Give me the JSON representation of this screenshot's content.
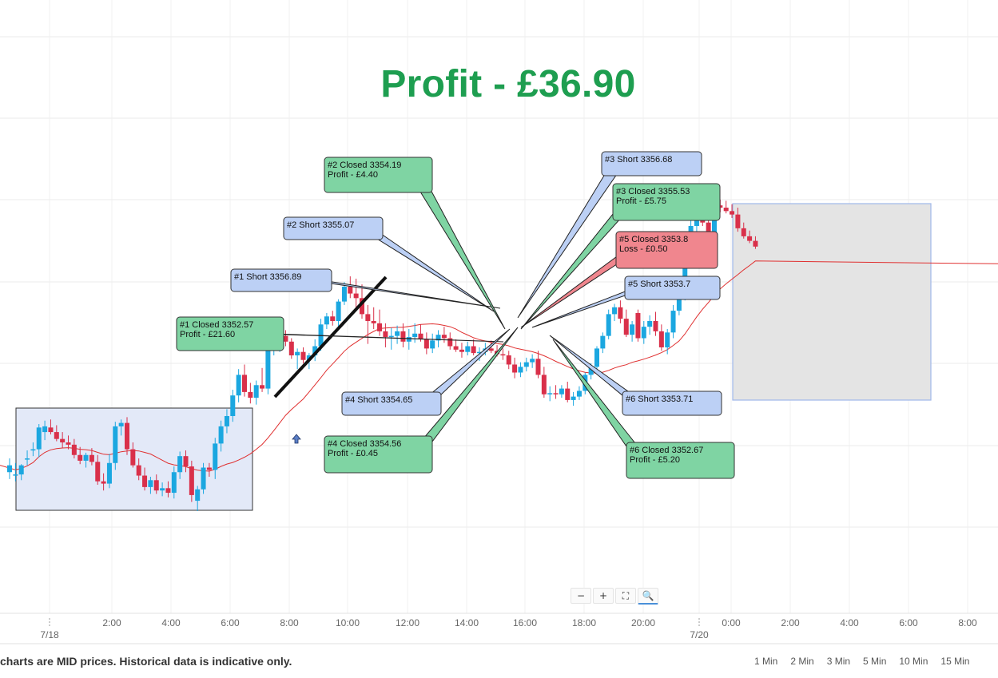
{
  "headline": {
    "text": "Profit - £36.90",
    "color": "#1e9e50"
  },
  "footer": {
    "note": "charts are MID prices. Historical data is indicative only.",
    "timeframes": [
      "1 Min",
      "2 Min",
      "3 Min",
      "5 Min",
      "10 Min",
      "15 Min"
    ]
  },
  "zoom_controls": [
    "minus-icon",
    "plus-icon",
    "fit-screen-icon",
    "magnifier-icon"
  ],
  "colors": {
    "up_candle": "#1ba7e0",
    "down_candle": "#d9304a",
    "moving_average": "#e03030",
    "profit_label_bg": "#7fd4a3",
    "loss_label_bg": "#f0868e",
    "short_label_bg": "#bcd0f5",
    "range_box_left": "#e3e9f8",
    "range_box_right": "#e4e4e4"
  },
  "chart_data": {
    "type": "candlestick",
    "title": "",
    "x_tick_labels": [
      "7/18",
      "2:00",
      "4:00",
      "6:00",
      "8:00",
      "10:00",
      "12:00",
      "14:00",
      "16:00",
      "18:00",
      "20:00",
      "7/20",
      "0:00",
      "2:00",
      "4:00",
      "6:00",
      "8:00"
    ],
    "y_range_approx": [
      3342,
      3368
    ],
    "ohlc": [
      [
        3344.4,
        3345.6,
        3343.8,
        3345.0
      ],
      [
        3344.2,
        3345.2,
        3343.6,
        3344.2
      ],
      [
        3344.2,
        3345.1,
        3343.7,
        3345.0
      ],
      [
        3345.6,
        3346.3,
        3345.0,
        3345.6
      ],
      [
        3346.4,
        3347.0,
        3345.8,
        3346.4
      ],
      [
        3346.4,
        3348.6,
        3345.7,
        3348.3
      ],
      [
        3347.9,
        3348.9,
        3347.2,
        3348.4
      ],
      [
        3348.3,
        3349.0,
        3347.7,
        3347.9
      ],
      [
        3347.9,
        3348.5,
        3347.1,
        3347.3
      ],
      [
        3347.3,
        3347.9,
        3346.5,
        3347.0
      ],
      [
        3347.0,
        3347.6,
        3346.4,
        3346.8
      ],
      [
        3346.8,
        3347.3,
        3345.6,
        3345.9
      ],
      [
        3345.9,
        3346.6,
        3345.1,
        3345.4
      ],
      [
        3345.4,
        3346.1,
        3344.8,
        3345.9
      ],
      [
        3345.9,
        3346.5,
        3345.0,
        3345.3
      ],
      [
        3345.3,
        3345.9,
        3343.3,
        3343.6
      ],
      [
        3343.6,
        3344.3,
        3342.8,
        3343.4
      ],
      [
        3343.4,
        3346.0,
        3343.0,
        3345.2
      ],
      [
        3345.2,
        3348.8,
        3344.6,
        3348.4
      ],
      [
        3348.4,
        3349.0,
        3347.6,
        3348.7
      ],
      [
        3348.7,
        3349.2,
        3345.9,
        3346.4
      ],
      [
        3346.4,
        3347.0,
        3344.8,
        3345.0
      ],
      [
        3345.0,
        3345.6,
        3343.7,
        3344.1
      ],
      [
        3344.1,
        3344.8,
        3342.8,
        3343.1
      ],
      [
        3343.1,
        3344.0,
        3342.5,
        3343.7
      ],
      [
        3343.7,
        3344.2,
        3342.5,
        3342.8
      ],
      [
        3342.8,
        3343.5,
        3342.3,
        3343.0
      ],
      [
        3343.0,
        3343.6,
        3342.2,
        3342.6
      ],
      [
        3342.6,
        3344.9,
        3342.1,
        3344.4
      ],
      [
        3344.4,
        3346.2,
        3343.8,
        3345.8
      ],
      [
        3345.8,
        3346.3,
        3344.4,
        3344.9
      ],
      [
        3344.9,
        3345.4,
        3341.8,
        3342.4
      ],
      [
        3341.9,
        3343.2,
        3341.0,
        3342.9
      ],
      [
        3342.9,
        3345.2,
        3342.5,
        3344.8
      ],
      [
        3344.8,
        3345.2,
        3344.0,
        3344.6
      ],
      [
        3344.6,
        3347.4,
        3343.8,
        3346.9
      ],
      [
        3346.9,
        3348.9,
        3346.2,
        3348.4
      ],
      [
        3348.4,
        3349.9,
        3347.8,
        3349.3
      ],
      [
        3349.3,
        3351.6,
        3348.8,
        3351.1
      ],
      [
        3351.1,
        3353.4,
        3350.5,
        3352.9
      ],
      [
        3352.9,
        3353.8,
        3351.0,
        3351.4
      ],
      [
        3351.4,
        3352.2,
        3350.4,
        3350.9
      ],
      [
        3350.9,
        3352.4,
        3350.3,
        3352.0
      ],
      [
        3352.0,
        3353.5,
        3351.4,
        3351.7
      ],
      [
        3351.7,
        3355.6,
        3351.2,
        3355.1
      ],
      [
        3355.1,
        3356.8,
        3354.6,
        3355.6
      ],
      [
        3355.6,
        3357.4,
        3354.9,
        3356.3
      ],
      [
        3356.3,
        3356.8,
        3355.4,
        3355.8
      ],
      [
        3355.8,
        3356.1,
        3354.3,
        3354.6
      ],
      [
        3354.6,
        3355.2,
        3353.4,
        3354.9
      ],
      [
        3354.9,
        3355.3,
        3353.9,
        3354.2
      ],
      [
        3354.2,
        3354.8,
        3353.4,
        3354.6
      ],
      [
        3354.6,
        3356.0,
        3354.1,
        3355.4
      ],
      [
        3355.4,
        3357.8,
        3355.0,
        3357.3
      ],
      [
        3357.3,
        3358.3,
        3356.9,
        3358.0
      ],
      [
        3358.0,
        3358.5,
        3357.2,
        3357.6
      ],
      [
        3357.6,
        3359.5,
        3356.8,
        3359.3
      ],
      [
        3359.3,
        3361.0,
        3359.0,
        3360.6
      ],
      [
        3360.6,
        3361.5,
        3359.6,
        3360.0
      ],
      [
        3360.0,
        3361.3,
        3358.8,
        3359.6
      ],
      [
        3359.6,
        3360.8,
        3357.8,
        3358.2
      ],
      [
        3358.2,
        3359.0,
        3355.6,
        3357.6
      ],
      [
        3357.6,
        3358.8,
        3356.9,
        3357.4
      ],
      [
        3357.4,
        3358.6,
        3356.3,
        3356.7
      ],
      [
        3356.7,
        3357.4,
        3355.3,
        3356.2
      ],
      [
        3356.2,
        3357.0,
        3355.1,
        3356.3
      ],
      [
        3356.3,
        3357.2,
        3355.6,
        3356.7
      ],
      [
        3356.7,
        3357.4,
        3355.3,
        3355.8
      ],
      [
        3355.8,
        3356.9,
        3355.1,
        3356.2
      ],
      [
        3356.2,
        3357.4,
        3355.7,
        3356.5
      ],
      [
        3356.5,
        3357.3,
        3355.8,
        3356.0
      ],
      [
        3356.0,
        3356.6,
        3354.7,
        3355.2
      ],
      [
        3355.2,
        3356.5,
        3354.8,
        3355.9
      ],
      [
        3355.9,
        3356.8,
        3355.3,
        3356.4
      ],
      [
        3356.4,
        3357.1,
        3355.7,
        3356.1
      ],
      [
        3356.1,
        3356.6,
        3355.1,
        3355.4
      ],
      [
        3355.4,
        3356.0,
        3354.9,
        3355.1
      ],
      [
        3355.1,
        3355.7,
        3354.4,
        3354.9
      ],
      [
        3354.9,
        3355.8,
        3354.6,
        3355.4
      ],
      [
        3355.4,
        3356.0,
        3354.6,
        3354.8
      ],
      [
        3354.8,
        3355.3,
        3354.1,
        3354.9
      ],
      [
        3354.9,
        3355.7,
        3354.6,
        3355.2
      ],
      [
        3355.2,
        3355.9,
        3354.8,
        3355.0
      ],
      [
        3355.0,
        3355.5,
        3354.5,
        3354.7
      ],
      [
        3354.7,
        3355.2,
        3354.2,
        3354.6
      ],
      [
        3354.6,
        3355.0,
        3353.4,
        3353.8
      ],
      [
        3353.8,
        3354.4,
        3352.6,
        3353.1
      ],
      [
        3353.1,
        3354.0,
        3352.7,
        3353.6
      ],
      [
        3353.6,
        3354.4,
        3353.2,
        3354.0
      ],
      [
        3354.0,
        3354.7,
        3353.5,
        3354.3
      ],
      [
        3354.3,
        3355.0,
        3352.6,
        3352.9
      ],
      [
        3352.9,
        3353.6,
        3350.9,
        3351.2
      ],
      [
        3351.2,
        3351.9,
        3350.6,
        3351.3
      ],
      [
        3351.3,
        3352.0,
        3350.8,
        3351.2
      ],
      [
        3351.2,
        3352.0,
        3350.9,
        3351.7
      ],
      [
        3351.7,
        3352.3,
        3350.5,
        3350.7
      ],
      [
        3350.7,
        3351.4,
        3350.2,
        3351.0
      ],
      [
        3351.0,
        3351.9,
        3350.7,
        3351.5
      ],
      [
        3351.5,
        3353.1,
        3351.2,
        3352.9
      ],
      [
        3352.9,
        3353.9,
        3352.5,
        3353.6
      ],
      [
        3353.6,
        3355.4,
        3353.1,
        3355.2
      ],
      [
        3355.2,
        3356.6,
        3354.8,
        3356.3
      ],
      [
        3356.3,
        3358.6,
        3356.0,
        3358.2
      ],
      [
        3358.2,
        3359.1,
        3357.6,
        3358.8
      ],
      [
        3358.8,
        3359.4,
        3357.4,
        3357.8
      ],
      [
        3357.8,
        3358.6,
        3356.2,
        3356.4
      ],
      [
        3356.4,
        3357.6,
        3355.8,
        3357.3
      ],
      [
        3358.3,
        3358.6,
        3355.8,
        3356.1
      ],
      [
        3356.1,
        3357.6,
        3355.6,
        3357.1
      ],
      [
        3357.1,
        3358.1,
        3356.4,
        3357.6
      ],
      [
        3357.6,
        3358.4,
        3356.3,
        3356.7
      ],
      [
        3356.7,
        3357.3,
        3355.0,
        3355.3
      ],
      [
        3355.3,
        3356.9,
        3354.7,
        3356.6
      ],
      [
        3356.6,
        3359.0,
        3356.1,
        3358.5
      ],
      [
        3358.5,
        3360.1,
        3358.1,
        3359.7
      ],
      [
        3359.7,
        3363.4,
        3359.4,
        3362.9
      ],
      [
        3362.9,
        3366.5,
        3362.4,
        3365.9
      ],
      [
        3365.9,
        3366.8,
        3365.4,
        3366.4
      ],
      [
        3366.4,
        3366.8,
        3365.9,
        3366.2
      ],
      [
        3366.2,
        3366.6,
        3364.8,
        3365.3
      ],
      [
        3365.3,
        3368.0,
        3365.1,
        3367.7
      ],
      [
        3367.7,
        3368.2,
        3367.1,
        3367.5
      ],
      [
        3367.5,
        3368.1,
        3367.0,
        3367.2
      ],
      [
        3367.2,
        3367.8,
        3366.6,
        3366.9
      ],
      [
        3366.9,
        3367.5,
        3365.4,
        3365.7
      ],
      [
        3365.7,
        3366.2,
        3364.8,
        3365.0
      ],
      [
        3365.0,
        3365.5,
        3364.4,
        3364.6
      ],
      [
        3364.6,
        3365.0,
        3363.9,
        3364.1
      ]
    ],
    "annotations": [
      {
        "label": "#1 Short 3356.89",
        "kind": "short"
      },
      {
        "label": "#1 Closed 3352.57\nProfit - £21.60",
        "kind": "profit"
      },
      {
        "label": "#2 Short 3355.07",
        "kind": "short"
      },
      {
        "label": "#2 Closed 3354.19\nProfit - £4.40",
        "kind": "profit"
      },
      {
        "label": "#3 Short 3356.68",
        "kind": "short"
      },
      {
        "label": "#3 Closed 3355.53\nProfit - £5.75",
        "kind": "profit"
      },
      {
        "label": "#4 Short 3354.65",
        "kind": "short"
      },
      {
        "label": "#4 Closed 3354.56\nProfit - £0.45",
        "kind": "profit"
      },
      {
        "label": "#5 Short 3353.7",
        "kind": "short"
      },
      {
        "label": "#5 Closed 3353.8\nLoss - £0.50",
        "kind": "loss"
      },
      {
        "label": "#6 Short 3353.71",
        "kind": "short"
      },
      {
        "label": "#6 Closed 3352.67\nProfit - £5.20",
        "kind": "profit"
      }
    ]
  }
}
